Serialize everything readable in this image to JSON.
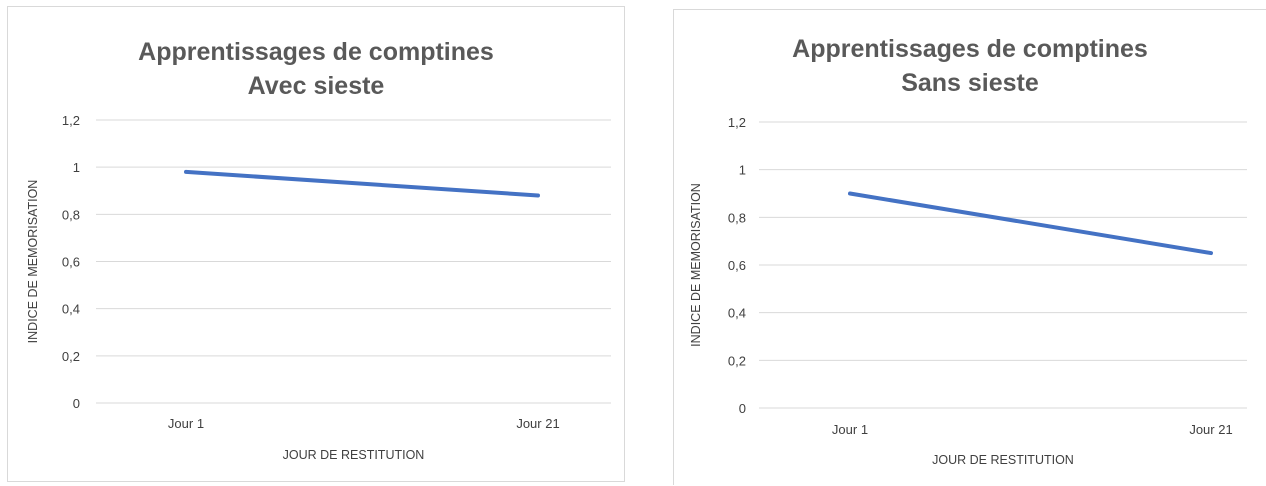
{
  "chart_data": [
    {
      "type": "line",
      "title_line1": "Apprentissages de comptines",
      "title_line2": "Avec sieste",
      "xlabel": "JOUR DE RESTITUTION",
      "ylabel": "INDICE DE MEMORISATION",
      "categories": [
        "Jour 1",
        "Jour 21"
      ],
      "series": [
        {
          "values": [
            0.98,
            0.88
          ]
        }
      ],
      "ylim": [
        0,
        1.2
      ],
      "yticks": [
        0,
        0.2,
        0.4,
        0.6,
        0.8,
        1,
        1.2
      ],
      "ytick_labels": [
        "0",
        "0,2",
        "0,4",
        "0,6",
        "0,8",
        "1",
        "1,2"
      ],
      "grid": true,
      "line_color": "#4472c4"
    },
    {
      "type": "line",
      "title_line1": "Apprentissages de comptines",
      "title_line2": "Sans sieste",
      "xlabel": "JOUR DE RESTITUTION",
      "ylabel": "INDICE DE MEMORISATION",
      "categories": [
        "Jour 1",
        "Jour 21"
      ],
      "series": [
        {
          "values": [
            0.9,
            0.65
          ]
        }
      ],
      "ylim": [
        0,
        1.2
      ],
      "yticks": [
        0,
        0.2,
        0.4,
        0.6,
        0.8,
        1,
        1.2
      ],
      "ytick_labels": [
        "0",
        "0,2",
        "0,4",
        "0,6",
        "0,8",
        "1",
        "1,2"
      ],
      "grid": true,
      "line_color": "#4472c4"
    }
  ]
}
